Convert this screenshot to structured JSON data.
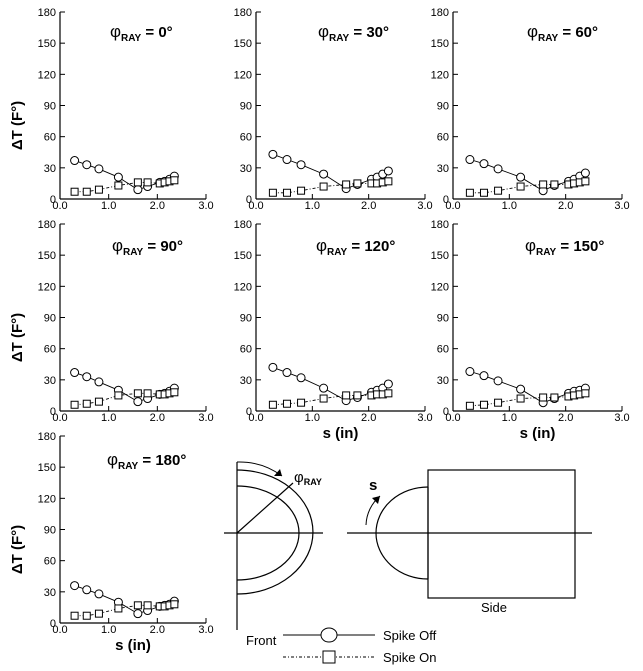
{
  "chart_data": [
    {
      "type": "line",
      "title_symbol": "φ",
      "title_sub": "RAY",
      "title_value": "= 0°",
      "ylabel": "ΔT (F°)",
      "xlabel": "",
      "xlim": [
        0,
        3
      ],
      "ylim": [
        0,
        180
      ],
      "xticks": [
        "0.0",
        "1.0",
        "2.0",
        "3.0"
      ],
      "yticks": [
        "0",
        "30",
        "60",
        "90",
        "120",
        "150",
        "180"
      ],
      "series": [
        {
          "name": "Spike Off",
          "marker": "circle",
          "style": "solid",
          "x": [
            0.3,
            0.55,
            0.8,
            1.2,
            1.6,
            1.8,
            2.05,
            2.15,
            2.25,
            2.35
          ],
          "y": [
            37,
            33,
            29,
            21,
            9,
            12,
            16,
            17,
            19,
            22
          ]
        },
        {
          "name": "Spike On",
          "marker": "square",
          "style": "dotted",
          "x": [
            0.3,
            0.55,
            0.8,
            1.2,
            1.6,
            1.8,
            2.05,
            2.15,
            2.25,
            2.35
          ],
          "y": [
            7,
            7,
            9,
            13,
            16,
            16,
            15,
            16,
            17,
            18
          ]
        }
      ]
    },
    {
      "type": "line",
      "title_symbol": "φ",
      "title_sub": "RAY",
      "title_value": "= 30°",
      "ylabel": "",
      "xlabel": "",
      "xlim": [
        0,
        3
      ],
      "ylim": [
        0,
        180
      ],
      "xticks": [
        "0.0",
        "1.0",
        "2.0",
        "3.0"
      ],
      "yticks": [
        "0",
        "30",
        "60",
        "90",
        "120",
        "150",
        "180"
      ],
      "series": [
        {
          "name": "Spike Off",
          "marker": "circle",
          "style": "solid",
          "x": [
            0.3,
            0.55,
            0.8,
            1.2,
            1.6,
            1.8,
            2.05,
            2.15,
            2.25,
            2.35
          ],
          "y": [
            43,
            38,
            33,
            24,
            10,
            14,
            19,
            21,
            24,
            27
          ]
        },
        {
          "name": "Spike On",
          "marker": "square",
          "style": "dotted",
          "x": [
            0.3,
            0.55,
            0.8,
            1.2,
            1.6,
            1.8,
            2.05,
            2.15,
            2.25,
            2.35
          ],
          "y": [
            6,
            6,
            8,
            12,
            14,
            15,
            15,
            15,
            16,
            17
          ]
        }
      ]
    },
    {
      "type": "line",
      "title_symbol": "φ",
      "title_sub": "RAY",
      "title_value": "= 60°",
      "ylabel": "",
      "xlabel": "",
      "xlim": [
        0,
        3
      ],
      "ylim": [
        0,
        180
      ],
      "xticks": [
        "0.0",
        "1.0",
        "2.0",
        "3.0"
      ],
      "yticks": [
        "0",
        "30",
        "60",
        "90",
        "120",
        "150",
        "180"
      ],
      "series": [
        {
          "name": "Spike Off",
          "marker": "circle",
          "style": "solid",
          "x": [
            0.3,
            0.55,
            0.8,
            1.2,
            1.6,
            1.8,
            2.05,
            2.15,
            2.25,
            2.35
          ],
          "y": [
            38,
            34,
            29,
            21,
            8,
            13,
            17,
            19,
            22,
            25
          ]
        },
        {
          "name": "Spike On",
          "marker": "square",
          "style": "dotted",
          "x": [
            0.3,
            0.55,
            0.8,
            1.2,
            1.6,
            1.8,
            2.05,
            2.15,
            2.25,
            2.35
          ],
          "y": [
            6,
            6,
            8,
            12,
            14,
            14,
            14,
            15,
            16,
            17
          ]
        }
      ]
    },
    {
      "type": "line",
      "title_symbol": "φ",
      "title_sub": "RAY",
      "title_value": "= 90°",
      "ylabel": "ΔT (F°)",
      "xlabel": "",
      "xlim": [
        0,
        3
      ],
      "ylim": [
        0,
        180
      ],
      "xticks": [
        "0.0",
        "1.0",
        "2.0",
        "3.0"
      ],
      "yticks": [
        "0",
        "30",
        "60",
        "90",
        "120",
        "150",
        "180"
      ],
      "series": [
        {
          "name": "Spike Off",
          "marker": "circle",
          "style": "solid",
          "x": [
            0.3,
            0.55,
            0.8,
            1.2,
            1.6,
            1.8,
            2.05,
            2.15,
            2.25,
            2.35
          ],
          "y": [
            37,
            33,
            28,
            20,
            9,
            12,
            16,
            17,
            19,
            22
          ]
        },
        {
          "name": "Spike On",
          "marker": "square",
          "style": "dotted",
          "x": [
            0.3,
            0.55,
            0.8,
            1.2,
            1.6,
            1.8,
            2.05,
            2.15,
            2.25,
            2.35
          ],
          "y": [
            6,
            7,
            9,
            15,
            17,
            17,
            16,
            16,
            17,
            18
          ]
        }
      ]
    },
    {
      "type": "line",
      "title_symbol": "φ",
      "title_sub": "RAY",
      "title_value": "= 120°",
      "ylabel": "",
      "xlabel": "s (in)",
      "xlim": [
        0,
        3
      ],
      "ylim": [
        0,
        180
      ],
      "xticks": [
        "0.0",
        "1.0",
        "2.0",
        "3.0"
      ],
      "yticks": [
        "0",
        "30",
        "60",
        "90",
        "120",
        "150",
        "180"
      ],
      "series": [
        {
          "name": "Spike Off",
          "marker": "circle",
          "style": "solid",
          "x": [
            0.3,
            0.55,
            0.8,
            1.2,
            1.6,
            1.8,
            2.05,
            2.15,
            2.25,
            2.35
          ],
          "y": [
            42,
            37,
            32,
            22,
            10,
            13,
            18,
            20,
            22,
            26
          ]
        },
        {
          "name": "Spike On",
          "marker": "square",
          "style": "dotted",
          "x": [
            0.3,
            0.55,
            0.8,
            1.2,
            1.6,
            1.8,
            2.05,
            2.15,
            2.25,
            2.35
          ],
          "y": [
            6,
            7,
            8,
            12,
            15,
            15,
            15,
            16,
            16,
            17
          ]
        }
      ]
    },
    {
      "type": "line",
      "title_symbol": "φ",
      "title_sub": "RAY",
      "title_value": "= 150°",
      "ylabel": "",
      "xlabel": "s (in)",
      "xlim": [
        0,
        3
      ],
      "ylim": [
        0,
        180
      ],
      "xticks": [
        "0.0",
        "1.0",
        "2.0",
        "3.0"
      ],
      "yticks": [
        "0",
        "30",
        "60",
        "90",
        "120",
        "150",
        "180"
      ],
      "series": [
        {
          "name": "Spike Off",
          "marker": "circle",
          "style": "solid",
          "x": [
            0.3,
            0.55,
            0.8,
            1.2,
            1.6,
            1.8,
            2.05,
            2.15,
            2.25,
            2.35
          ],
          "y": [
            38,
            34,
            29,
            21,
            8,
            12,
            17,
            19,
            20,
            22
          ]
        },
        {
          "name": "Spike On",
          "marker": "square",
          "style": "dotted",
          "x": [
            0.3,
            0.55,
            0.8,
            1.2,
            1.6,
            1.8,
            2.05,
            2.15,
            2.25,
            2.35
          ],
          "y": [
            5,
            6,
            8,
            12,
            13,
            13,
            14,
            15,
            16,
            17
          ]
        }
      ]
    },
    {
      "type": "line",
      "title_symbol": "φ",
      "title_sub": "RAY",
      "title_value": "= 180°",
      "ylabel": "ΔT (F°)",
      "xlabel": "s (in)",
      "xlim": [
        0,
        3
      ],
      "ylim": [
        0,
        180
      ],
      "xticks": [
        "0.0",
        "1.0",
        "2.0",
        "3.0"
      ],
      "yticks": [
        "0",
        "30",
        "60",
        "90",
        "120",
        "150",
        "180"
      ],
      "series": [
        {
          "name": "Spike Off",
          "marker": "circle",
          "style": "solid",
          "x": [
            0.3,
            0.55,
            0.8,
            1.2,
            1.6,
            1.8,
            2.05,
            2.15,
            2.25,
            2.35
          ],
          "y": [
            36,
            32,
            28,
            20,
            9,
            12,
            16,
            17,
            18,
            21
          ]
        },
        {
          "name": "Spike On",
          "marker": "square",
          "style": "dotted",
          "x": [
            0.3,
            0.55,
            0.8,
            1.2,
            1.6,
            1.8,
            2.05,
            2.15,
            2.25,
            2.35
          ],
          "y": [
            7,
            7,
            9,
            14,
            17,
            17,
            16,
            16,
            17,
            18
          ]
        }
      ]
    }
  ],
  "diagram": {
    "front_label": "Front",
    "side_label": "Side",
    "phi_symbol": "φ",
    "phi_sub": "RAY",
    "s_label": "s"
  },
  "legend": {
    "items": [
      {
        "label": "Spike Off",
        "marker": "circle",
        "style": "solid"
      },
      {
        "label": "Spike On",
        "marker": "square",
        "style": "dotted"
      }
    ]
  }
}
